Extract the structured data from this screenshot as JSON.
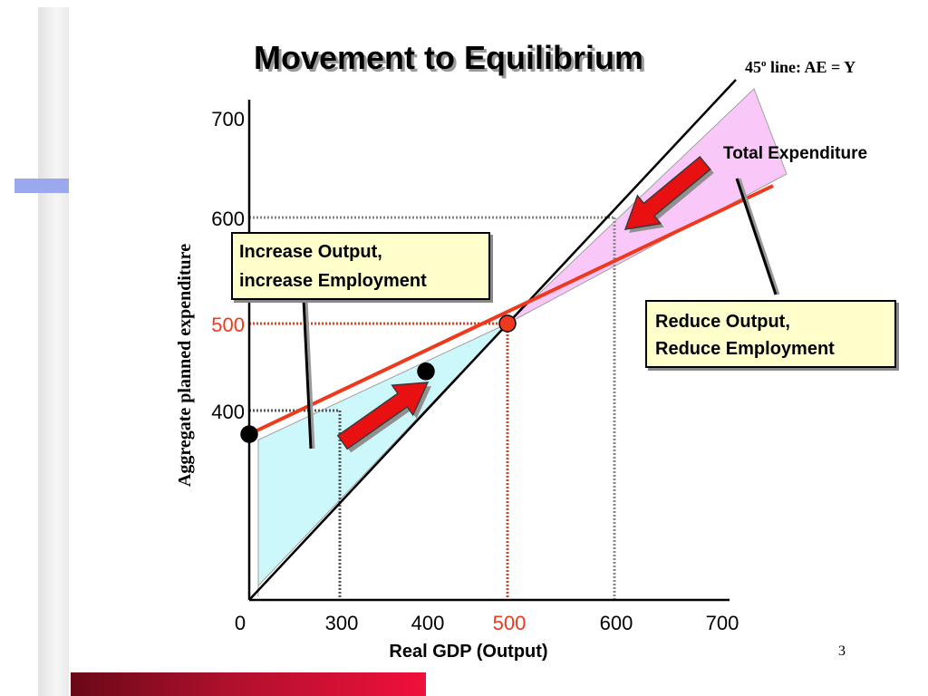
{
  "slide": {
    "title": "Movement to Equilibrium",
    "number": "3"
  },
  "chart_data": {
    "type": "line",
    "xlabel": "Real GDP (Output)",
    "ylabel": "Aggregate planned expenditure",
    "x_ticks": [
      "0",
      "300",
      "400",
      "500",
      "600",
      "700"
    ],
    "y_ticks": [
      "400",
      "500",
      "600",
      "700"
    ],
    "highlight_tick": "500",
    "xlim": [
      0,
      700
    ],
    "ylim": [
      0,
      700
    ],
    "series": [
      {
        "name": "45° line: AE = Y",
        "label_main": "45",
        "label_sup": "o",
        "label_rest": " line: AE = Y",
        "points": [
          [
            0,
            0
          ],
          [
            700,
            700
          ]
        ],
        "color": "#000000"
      },
      {
        "name": "Total Expenditure",
        "points": [
          [
            0,
            350
          ],
          [
            762,
            670
          ]
        ],
        "color": "#ee3a1c"
      }
    ],
    "points": [
      {
        "x": 0,
        "y": 350,
        "color": "#000000"
      },
      {
        "x": 400,
        "y": 445,
        "color": "#000000"
      },
      {
        "x": 500,
        "y": 500,
        "color": "#ee3a1c"
      }
    ],
    "guides": [
      {
        "x": 300,
        "y": 400,
        "color": "#555555"
      },
      {
        "x": 500,
        "y": 500,
        "color": "#e04020"
      },
      {
        "x": 600,
        "y": 600,
        "color": "#888888"
      }
    ],
    "regions": [
      {
        "name": "gap-below-equilibrium",
        "color": "#ccf8fc"
      },
      {
        "name": "gap-above-equilibrium",
        "color": "#fac8f8"
      }
    ],
    "annotations": [
      {
        "text_lines": [
          "Increase Output,",
          "increase Employment"
        ]
      },
      {
        "text_lines": [
          "Reduce Output,",
          "Reduce Employment"
        ]
      }
    ],
    "accent_color": "#ee3a1c",
    "arrow_color": "#e81010",
    "box_color": "#ffffcc"
  }
}
